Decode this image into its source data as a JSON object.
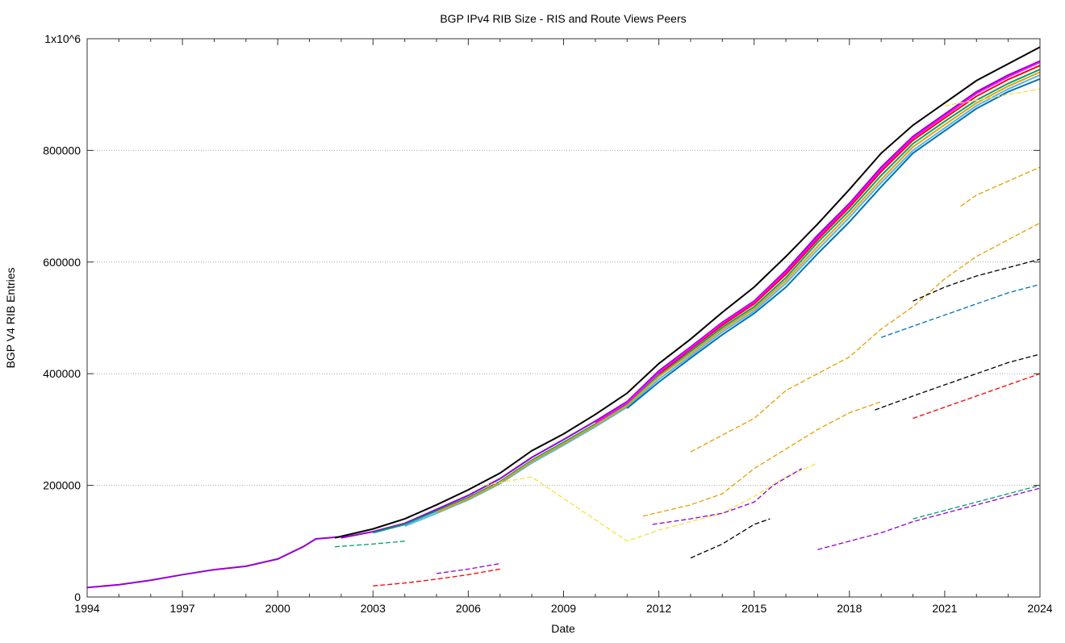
{
  "chart_data": {
    "type": "line",
    "title": "BGP IPv4 RIB Size - RIS and Route Views Peers",
    "xlabel": "Date",
    "ylabel": "BGP V4 RIB Entries",
    "xlim": [
      1994,
      2024
    ],
    "ylim": [
      0,
      1000000
    ],
    "x_ticks": [
      "1994",
      "1997",
      "2000",
      "2003",
      "2006",
      "2009",
      "2012",
      "2015",
      "2018",
      "2021",
      "2024"
    ],
    "y_ticks": [
      "0",
      "200000",
      "400000",
      "600000",
      "800000",
      "1x10^6"
    ],
    "grid": "horizontal dotted",
    "legend": "none",
    "series": [
      {
        "color": "#9400d3",
        "points": [
          [
            1994,
            17000
          ],
          [
            1995,
            22000
          ],
          [
            1996,
            30000
          ],
          [
            1997,
            40000
          ],
          [
            1998,
            49000
          ],
          [
            1999,
            55000
          ],
          [
            2000,
            68000
          ],
          [
            2000.8,
            90000
          ],
          [
            2001.2,
            104000
          ],
          [
            2002,
            108000
          ]
        ]
      },
      {
        "color": "#000000",
        "points": [
          [
            2001.8,
            106000
          ],
          [
            2003,
            122000
          ],
          [
            2004,
            140000
          ],
          [
            2005,
            165000
          ],
          [
            2006,
            192000
          ],
          [
            2007,
            222000
          ],
          [
            2008,
            262000
          ],
          [
            2009,
            292000
          ],
          [
            2010,
            327000
          ],
          [
            2011,
            365000
          ],
          [
            2012,
            418000
          ],
          [
            2013,
            462000
          ],
          [
            2014,
            510000
          ],
          [
            2015,
            555000
          ],
          [
            2016,
            610000
          ],
          [
            2017,
            668000
          ],
          [
            2018,
            730000
          ],
          [
            2019,
            795000
          ],
          [
            2020,
            845000
          ],
          [
            2021,
            885000
          ],
          [
            2022,
            925000
          ],
          [
            2023,
            955000
          ],
          [
            2024,
            985000
          ]
        ]
      },
      {
        "color": "#9400d3",
        "points": [
          [
            2002,
            106000
          ],
          [
            2003,
            117000
          ],
          [
            2004,
            132000
          ],
          [
            2005,
            157000
          ],
          [
            2006,
            182000
          ],
          [
            2007,
            212000
          ],
          [
            2008,
            250000
          ],
          [
            2009,
            282000
          ],
          [
            2010,
            315000
          ],
          [
            2011,
            350000
          ],
          [
            2012,
            405000
          ],
          [
            2013,
            448000
          ],
          [
            2014,
            492000
          ],
          [
            2015,
            530000
          ],
          [
            2016,
            585000
          ],
          [
            2017,
            648000
          ],
          [
            2018,
            705000
          ],
          [
            2019,
            770000
          ],
          [
            2020,
            825000
          ],
          [
            2021,
            865000
          ],
          [
            2022,
            905000
          ],
          [
            2023,
            935000
          ],
          [
            2024,
            960000
          ]
        ]
      },
      {
        "color": "#009e73",
        "points": [
          [
            2003,
            115000
          ],
          [
            2004,
            130000
          ],
          [
            2005,
            154000
          ],
          [
            2006,
            178000
          ],
          [
            2007,
            207000
          ],
          [
            2008,
            245000
          ],
          [
            2009,
            277000
          ],
          [
            2010,
            310000
          ],
          [
            2011,
            345000
          ],
          [
            2012,
            398000
          ],
          [
            2013,
            440000
          ],
          [
            2014,
            483000
          ],
          [
            2015,
            520000
          ],
          [
            2016,
            572000
          ],
          [
            2017,
            635000
          ],
          [
            2018,
            692000
          ],
          [
            2019,
            755000
          ],
          [
            2020,
            812000
          ],
          [
            2021,
            852000
          ],
          [
            2022,
            890000
          ],
          [
            2023,
            920000
          ],
          [
            2024,
            945000
          ]
        ]
      },
      {
        "color": "#56b4e9",
        "points": [
          [
            2004,
            127000
          ],
          [
            2005,
            150000
          ],
          [
            2006,
            174000
          ],
          [
            2007,
            203000
          ],
          [
            2008,
            240000
          ],
          [
            2009,
            272000
          ],
          [
            2010,
            305000
          ],
          [
            2011,
            340000
          ],
          [
            2012,
            390000
          ],
          [
            2013,
            432000
          ],
          [
            2014,
            475000
          ],
          [
            2015,
            512000
          ],
          [
            2016,
            562000
          ],
          [
            2017,
            622000
          ],
          [
            2018,
            680000
          ],
          [
            2019,
            742000
          ],
          [
            2020,
            800000
          ],
          [
            2021,
            840000
          ],
          [
            2022,
            880000
          ],
          [
            2023,
            910000
          ],
          [
            2024,
            935000
          ]
        ]
      },
      {
        "color": "#e69f00",
        "points": [
          [
            2005,
            152000
          ],
          [
            2006,
            176000
          ],
          [
            2007,
            205000
          ],
          [
            2008,
            243000
          ],
          [
            2009,
            275000
          ],
          [
            2010,
            308000
          ],
          [
            2011,
            343000
          ],
          [
            2012,
            395000
          ],
          [
            2013,
            436000
          ],
          [
            2014,
            479000
          ],
          [
            2015,
            516000
          ],
          [
            2016,
            567000
          ],
          [
            2017,
            628000
          ],
          [
            2018,
            686000
          ],
          [
            2019,
            748000
          ],
          [
            2020,
            806000
          ],
          [
            2021,
            846000
          ],
          [
            2022,
            885000
          ],
          [
            2023,
            915000
          ],
          [
            2024,
            940000
          ]
        ]
      },
      {
        "color": "#ff0000",
        "points": [
          [
            2012,
            400000
          ],
          [
            2013,
            444000
          ],
          [
            2014,
            487000
          ],
          [
            2015,
            525000
          ],
          [
            2016,
            578000
          ],
          [
            2017,
            640000
          ],
          [
            2018,
            698000
          ],
          [
            2019,
            762000
          ],
          [
            2020,
            818000
          ],
          [
            2021,
            858000
          ],
          [
            2022,
            897000
          ],
          [
            2023,
            927000
          ],
          [
            2024,
            952000
          ]
        ]
      },
      {
        "color": "#ff00ff",
        "points": [
          [
            2010,
            312000
          ],
          [
            2011,
            348000
          ],
          [
            2012,
            402000
          ],
          [
            2013,
            446000
          ],
          [
            2014,
            490000
          ],
          [
            2015,
            528000
          ],
          [
            2016,
            582000
          ],
          [
            2017,
            644000
          ],
          [
            2018,
            702000
          ],
          [
            2019,
            766000
          ],
          [
            2020,
            822000
          ],
          [
            2021,
            862000
          ],
          [
            2022,
            902000
          ],
          [
            2023,
            932000
          ],
          [
            2024,
            958000
          ]
        ]
      },
      {
        "color": "#0072b2",
        "points": [
          [
            2011,
            338000
          ],
          [
            2012,
            385000
          ],
          [
            2013,
            428000
          ],
          [
            2014,
            470000
          ],
          [
            2015,
            508000
          ],
          [
            2016,
            555000
          ],
          [
            2017,
            615000
          ],
          [
            2018,
            672000
          ],
          [
            2019,
            735000
          ],
          [
            2020,
            795000
          ],
          [
            2021,
            835000
          ],
          [
            2022,
            875000
          ],
          [
            2023,
            905000
          ],
          [
            2024,
            928000
          ]
        ]
      },
      {
        "color": "#f0e442",
        "points": [
          [
            2006.5,
            200000
          ],
          [
            2008,
            215000
          ],
          [
            2011,
            100000
          ],
          [
            2012,
            120000
          ],
          [
            2013,
            135000
          ],
          [
            2014,
            150000
          ],
          [
            2015,
            180000
          ],
          [
            2016,
            215000
          ],
          [
            2017,
            240000
          ]
        ]
      },
      {
        "color": "#e69f00",
        "points": [
          [
            2011.5,
            145000
          ],
          [
            2013,
            165000
          ],
          [
            2014,
            185000
          ],
          [
            2015,
            230000
          ],
          [
            2016,
            265000
          ],
          [
            2017,
            300000
          ],
          [
            2018,
            330000
          ],
          [
            2019,
            350000
          ]
        ]
      },
      {
        "color": "#e69f00",
        "points": [
          [
            2013,
            260000
          ],
          [
            2014,
            290000
          ],
          [
            2015,
            320000
          ],
          [
            2016,
            370000
          ],
          [
            2017,
            400000
          ],
          [
            2018,
            430000
          ],
          [
            2019,
            480000
          ],
          [
            2020,
            520000
          ],
          [
            2021,
            570000
          ],
          [
            2022,
            610000
          ],
          [
            2023,
            640000
          ],
          [
            2024,
            670000
          ]
        ]
      },
      {
        "color": "#9400d3",
        "points": [
          [
            2011.8,
            130000
          ],
          [
            2013,
            140000
          ],
          [
            2014,
            150000
          ],
          [
            2015,
            170000
          ],
          [
            2015.6,
            200000
          ],
          [
            2016.5,
            230000
          ]
        ]
      },
      {
        "color": "#9400d3",
        "points": [
          [
            2017,
            85000
          ],
          [
            2018,
            100000
          ],
          [
            2019,
            115000
          ],
          [
            2020,
            135000
          ],
          [
            2021,
            150000
          ],
          [
            2022,
            165000
          ],
          [
            2023,
            180000
          ],
          [
            2024,
            195000
          ]
        ]
      },
      {
        "color": "#000000",
        "points": [
          [
            2018.8,
            335000
          ],
          [
            2020,
            360000
          ],
          [
            2021,
            380000
          ],
          [
            2022,
            400000
          ],
          [
            2023,
            420000
          ],
          [
            2024,
            435000
          ]
        ]
      },
      {
        "color": "#0072b2",
        "points": [
          [
            2019,
            465000
          ],
          [
            2020,
            485000
          ],
          [
            2021,
            505000
          ],
          [
            2022,
            525000
          ],
          [
            2023,
            545000
          ],
          [
            2024,
            560000
          ]
        ]
      },
      {
        "color": "#000000",
        "points": [
          [
            2020,
            530000
          ],
          [
            2021,
            555000
          ],
          [
            2022,
            575000
          ],
          [
            2023,
            590000
          ],
          [
            2024,
            605000
          ]
        ]
      },
      {
        "color": "#e69f00",
        "points": [
          [
            2021.5,
            700000
          ],
          [
            2022,
            720000
          ],
          [
            2023,
            745000
          ],
          [
            2024,
            770000
          ]
        ]
      },
      {
        "color": "#ff0000",
        "points": [
          [
            2020,
            320000
          ],
          [
            2021,
            340000
          ],
          [
            2022,
            360000
          ],
          [
            2023,
            380000
          ],
          [
            2024,
            400000
          ]
        ]
      },
      {
        "color": "#009e73",
        "points": [
          [
            2020,
            140000
          ],
          [
            2021,
            155000
          ],
          [
            2022,
            170000
          ],
          [
            2023,
            185000
          ],
          [
            2024,
            200000
          ]
        ]
      },
      {
        "color": "#000000",
        "points": [
          [
            2013,
            70000
          ],
          [
            2014,
            95000
          ],
          [
            2015,
            130000
          ],
          [
            2015.5,
            140000
          ]
        ]
      },
      {
        "color": "#ff0000",
        "points": [
          [
            2003,
            20000
          ],
          [
            2004,
            25000
          ],
          [
            2005,
            32000
          ],
          [
            2006,
            40000
          ],
          [
            2007,
            50000
          ]
        ]
      },
      {
        "color": "#9400d3",
        "points": [
          [
            2005,
            42000
          ],
          [
            2006,
            50000
          ],
          [
            2007,
            60000
          ]
        ]
      },
      {
        "color": "#009e73",
        "points": [
          [
            2001.8,
            90000
          ],
          [
            2003,
            95000
          ],
          [
            2004,
            100000
          ]
        ]
      },
      {
        "color": "#f0e442",
        "points": [
          [
            2021,
            880000
          ],
          [
            2022,
            890000
          ],
          [
            2023,
            900000
          ],
          [
            2024,
            910000
          ]
        ]
      }
    ]
  }
}
